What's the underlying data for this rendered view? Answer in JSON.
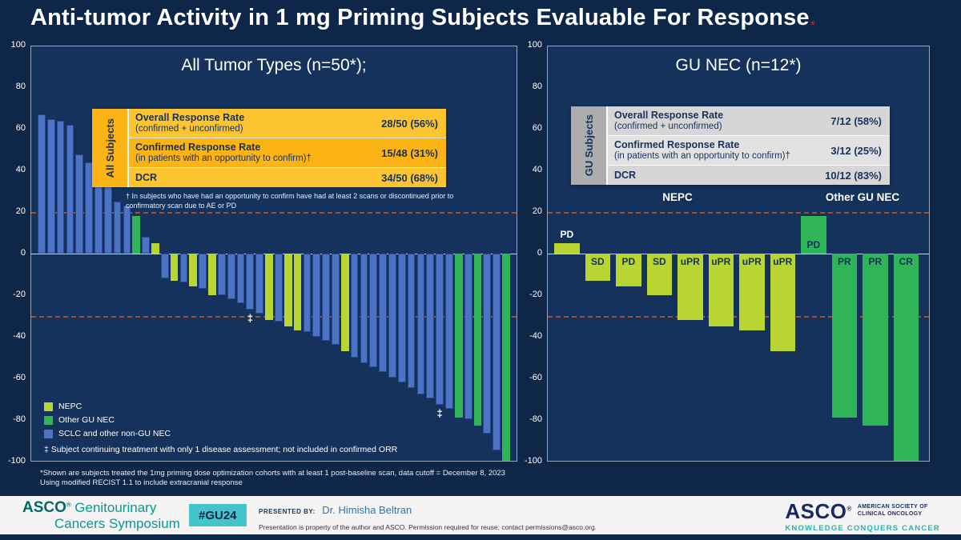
{
  "title": {
    "text": "Anti-tumor Activity in 1 mg Priming Subjects Evaluable For Response",
    "period": "."
  },
  "colors": {
    "nepc": "#b9d532",
    "other_gu_nec": "#2fb457",
    "sclc": "#4d74c4",
    "sclc_border": "#27478f",
    "ref_line": "#b35425",
    "background": "#0e2748"
  },
  "left_panel": {
    "table": {
      "side_label": "All Subjects",
      "rows": [
        {
          "label": "Overall Response Rate",
          "sublabel": "(confirmed + unconfirmed)",
          "value": "28/50 (56%)"
        },
        {
          "label": "Confirmed Response Rate",
          "sublabel": "(in patients with an opportunity to confirm)†",
          "value": "15/48 (31%)"
        },
        {
          "label": "DCR",
          "sublabel": "",
          "value": "34/50 (68%)"
        }
      ]
    },
    "footnote_dagger": "† In subjects who have had an opportunity to confirm have had at least 2 scans or discontinued prior to confirmatory scan due to AE or PD",
    "double_dagger_note": "‡ Subject continuing treatment with only 1 disease assessment; not included in confirmed ORR"
  },
  "right_panel": {
    "table": {
      "side_label": "GU Subjects",
      "rows": [
        {
          "label": "Overall Response Rate",
          "sublabel": "(confirmed + unconfirmed)",
          "value": "7/12 (58%)"
        },
        {
          "label": "Confirmed Response Rate",
          "sublabel": "(in patients with an opportunity to confirm)†",
          "value": "3/12 (25%)"
        },
        {
          "label": "DCR",
          "sublabel": "",
          "value": "10/12 (83%)"
        }
      ]
    }
  },
  "slide_footnotes": [
    "*Shown are subjects treated the 1mg priming dose optimization cohorts with at least 1 post-baseline scan, data cutoff = December 8, 2023",
    "Using modified RECIST 1.1 to include extracranial response"
  ],
  "chart_data": [
    {
      "type": "bar",
      "subtype": "waterfall",
      "title": "All Tumor Types (n=50*);",
      "ylim": [
        -100,
        100
      ],
      "yticks": [
        100,
        80,
        60,
        40,
        20,
        0,
        -20,
        -40,
        -60,
        -80,
        -100
      ],
      "ref_lines": [
        20,
        -30
      ],
      "grid": false,
      "legend_position": "bottom-left",
      "legend": [
        {
          "label": "NEPC",
          "group": "nepc"
        },
        {
          "label": "Other GU NEC",
          "group": "other_gu_nec"
        },
        {
          "label": "SCLC and other non-GU NEC",
          "group": "sclc"
        }
      ],
      "bars": [
        {
          "value": 67,
          "group": "sclc"
        },
        {
          "value": 65,
          "group": "sclc"
        },
        {
          "value": 64,
          "group": "sclc"
        },
        {
          "value": 62,
          "group": "sclc"
        },
        {
          "value": 48,
          "group": "sclc"
        },
        {
          "value": 44,
          "group": "sclc"
        },
        {
          "value": 40,
          "group": "sclc"
        },
        {
          "value": 38,
          "group": "sclc"
        },
        {
          "value": 25,
          "group": "sclc"
        },
        {
          "value": 23,
          "group": "sclc"
        },
        {
          "value": 18,
          "group": "other_gu_nec"
        },
        {
          "value": 8,
          "group": "sclc"
        },
        {
          "value": 5,
          "group": "nepc"
        },
        {
          "value": -12,
          "group": "sclc"
        },
        {
          "value": -13,
          "group": "nepc"
        },
        {
          "value": -14,
          "group": "sclc"
        },
        {
          "value": -16,
          "group": "nepc"
        },
        {
          "value": -17,
          "group": "sclc"
        },
        {
          "value": -20,
          "group": "nepc"
        },
        {
          "value": -20,
          "group": "sclc"
        },
        {
          "value": -22,
          "group": "sclc"
        },
        {
          "value": -24,
          "group": "sclc"
        },
        {
          "value": -27,
          "group": "sclc",
          "marker": "‡"
        },
        {
          "value": -29,
          "group": "sclc"
        },
        {
          "value": -32,
          "group": "nepc"
        },
        {
          "value": -33,
          "group": "sclc"
        },
        {
          "value": -35,
          "group": "nepc"
        },
        {
          "value": -37,
          "group": "nepc"
        },
        {
          "value": -38,
          "group": "sclc"
        },
        {
          "value": -40,
          "group": "sclc"
        },
        {
          "value": -42,
          "group": "sclc"
        },
        {
          "value": -44,
          "group": "sclc"
        },
        {
          "value": -47,
          "group": "nepc"
        },
        {
          "value": -50,
          "group": "sclc"
        },
        {
          "value": -53,
          "group": "sclc"
        },
        {
          "value": -55,
          "group": "sclc"
        },
        {
          "value": -57,
          "group": "sclc"
        },
        {
          "value": -60,
          "group": "sclc"
        },
        {
          "value": -62,
          "group": "sclc"
        },
        {
          "value": -65,
          "group": "sclc"
        },
        {
          "value": -68,
          "group": "sclc"
        },
        {
          "value": -70,
          "group": "sclc"
        },
        {
          "value": -73,
          "group": "sclc",
          "marker": "‡"
        },
        {
          "value": -75,
          "group": "sclc"
        },
        {
          "value": -79,
          "group": "other_gu_nec"
        },
        {
          "value": -80,
          "group": "sclc"
        },
        {
          "value": -83,
          "group": "other_gu_nec"
        },
        {
          "value": -87,
          "group": "sclc"
        },
        {
          "value": -95,
          "group": "sclc"
        },
        {
          "value": -100,
          "group": "other_gu_nec"
        }
      ]
    },
    {
      "type": "bar",
      "subtype": "waterfall",
      "title": "GU NEC (n=12*)",
      "ylim": [
        -100,
        100
      ],
      "yticks": [
        100,
        80,
        60,
        40,
        20,
        0,
        -20,
        -40,
        -60,
        -80,
        -100
      ],
      "ref_lines": [
        20,
        -30
      ],
      "grid": false,
      "group_labels": [
        {
          "text": "NEPC",
          "from": 0,
          "to": 7
        },
        {
          "text": "Other GU NEC",
          "from": 8,
          "to": 11
        }
      ],
      "bars": [
        {
          "value": 5,
          "group": "nepc",
          "label": "PD",
          "label_pos": "above"
        },
        {
          "value": -13,
          "group": "nepc",
          "label": "SD"
        },
        {
          "value": -16,
          "group": "nepc",
          "label": "PD"
        },
        {
          "value": -20,
          "group": "nepc",
          "label": "SD"
        },
        {
          "value": -32,
          "group": "nepc",
          "label": "uPR"
        },
        {
          "value": -35,
          "group": "nepc",
          "label": "uPR"
        },
        {
          "value": -37,
          "group": "nepc",
          "label": "uPR"
        },
        {
          "value": -47,
          "group": "nepc",
          "label": "uPR"
        },
        {
          "value": 18,
          "group": "other_gu_nec",
          "label": "PD",
          "label_pos": "inside-bottom"
        },
        {
          "value": -79,
          "group": "other_gu_nec",
          "label": "PR"
        },
        {
          "value": -83,
          "group": "other_gu_nec",
          "label": "PR"
        },
        {
          "value": -100,
          "group": "other_gu_nec",
          "label": "CR"
        }
      ]
    }
  ],
  "footer": {
    "symposium_logo": {
      "asco": "ASCO",
      "reg": "®",
      "line1": "Genitourinary",
      "line2": "Cancers Symposium"
    },
    "hashtag": "#GU24",
    "presented_by_label": "PRESENTED BY:",
    "presenter": "Dr. Himisha Beltran",
    "disclaimer": "Presentation is property of the author and ASCO. Permission required for reuse; contact permissions@asco.org.",
    "asco_logo": {
      "name": "ASCO",
      "reg": "®",
      "org_line1": "AMERICAN SOCIETY OF",
      "org_line2": "CLINICAL ONCOLOGY",
      "tagline": "KNOWLEDGE CONQUERS CANCER"
    }
  }
}
